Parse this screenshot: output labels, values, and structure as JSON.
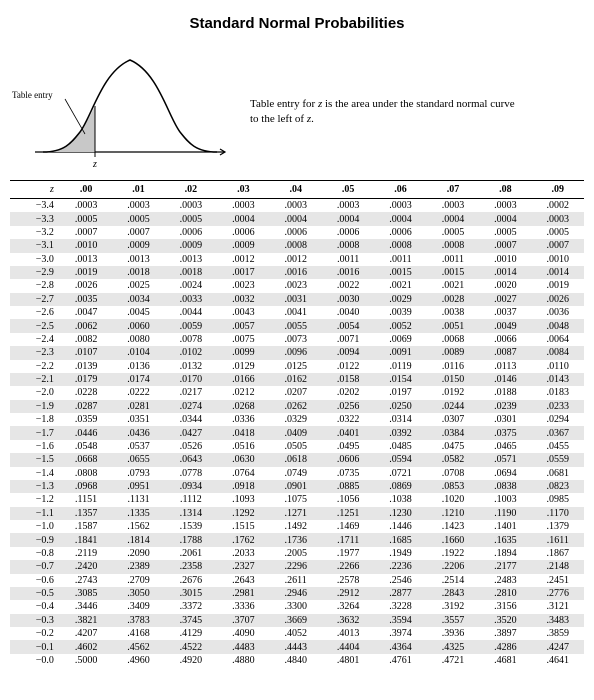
{
  "title": "Standard Normal Probabilities",
  "diagram": {
    "table_entry_label": "Table entry",
    "z_label": "z",
    "curve_stroke": "#000000",
    "fill_color": "#c8c8c8",
    "axis_color": "#000000"
  },
  "caption_line1": "Table entry for z is the area under the standard normal curve",
  "caption_line2": "to the left of z.",
  "columns": [
    "z",
    ".00",
    ".01",
    ".02",
    ".03",
    ".04",
    ".05",
    ".06",
    ".07",
    ".08",
    ".09"
  ],
  "rows": [
    {
      "z": "−3.4",
      "v": [
        ".0003",
        ".0003",
        ".0003",
        ".0003",
        ".0003",
        ".0003",
        ".0003",
        ".0003",
        ".0003",
        ".0002"
      ]
    },
    {
      "z": "−3.3",
      "v": [
        ".0005",
        ".0005",
        ".0005",
        ".0004",
        ".0004",
        ".0004",
        ".0004",
        ".0004",
        ".0004",
        ".0003"
      ]
    },
    {
      "z": "−3.2",
      "v": [
        ".0007",
        ".0007",
        ".0006",
        ".0006",
        ".0006",
        ".0006",
        ".0006",
        ".0005",
        ".0005",
        ".0005"
      ]
    },
    {
      "z": "−3.1",
      "v": [
        ".0010",
        ".0009",
        ".0009",
        ".0009",
        ".0008",
        ".0008",
        ".0008",
        ".0008",
        ".0007",
        ".0007"
      ]
    },
    {
      "z": "−3.0",
      "v": [
        ".0013",
        ".0013",
        ".0013",
        ".0012",
        ".0012",
        ".0011",
        ".0011",
        ".0011",
        ".0010",
        ".0010"
      ]
    },
    {
      "z": "−2.9",
      "v": [
        ".0019",
        ".0018",
        ".0018",
        ".0017",
        ".0016",
        ".0016",
        ".0015",
        ".0015",
        ".0014",
        ".0014"
      ]
    },
    {
      "z": "−2.8",
      "v": [
        ".0026",
        ".0025",
        ".0024",
        ".0023",
        ".0023",
        ".0022",
        ".0021",
        ".0021",
        ".0020",
        ".0019"
      ]
    },
    {
      "z": "−2.7",
      "v": [
        ".0035",
        ".0034",
        ".0033",
        ".0032",
        ".0031",
        ".0030",
        ".0029",
        ".0028",
        ".0027",
        ".0026"
      ]
    },
    {
      "z": "−2.6",
      "v": [
        ".0047",
        ".0045",
        ".0044",
        ".0043",
        ".0041",
        ".0040",
        ".0039",
        ".0038",
        ".0037",
        ".0036"
      ]
    },
    {
      "z": "−2.5",
      "v": [
        ".0062",
        ".0060",
        ".0059",
        ".0057",
        ".0055",
        ".0054",
        ".0052",
        ".0051",
        ".0049",
        ".0048"
      ]
    },
    {
      "z": "−2.4",
      "v": [
        ".0082",
        ".0080",
        ".0078",
        ".0075",
        ".0073",
        ".0071",
        ".0069",
        ".0068",
        ".0066",
        ".0064"
      ]
    },
    {
      "z": "−2.3",
      "v": [
        ".0107",
        ".0104",
        ".0102",
        ".0099",
        ".0096",
        ".0094",
        ".0091",
        ".0089",
        ".0087",
        ".0084"
      ]
    },
    {
      "z": "−2.2",
      "v": [
        ".0139",
        ".0136",
        ".0132",
        ".0129",
        ".0125",
        ".0122",
        ".0119",
        ".0116",
        ".0113",
        ".0110"
      ]
    },
    {
      "z": "−2.1",
      "v": [
        ".0179",
        ".0174",
        ".0170",
        ".0166",
        ".0162",
        ".0158",
        ".0154",
        ".0150",
        ".0146",
        ".0143"
      ]
    },
    {
      "z": "−2.0",
      "v": [
        ".0228",
        ".0222",
        ".0217",
        ".0212",
        ".0207",
        ".0202",
        ".0197",
        ".0192",
        ".0188",
        ".0183"
      ]
    },
    {
      "z": "−1.9",
      "v": [
        ".0287",
        ".0281",
        ".0274",
        ".0268",
        ".0262",
        ".0256",
        ".0250",
        ".0244",
        ".0239",
        ".0233"
      ]
    },
    {
      "z": "−1.8",
      "v": [
        ".0359",
        ".0351",
        ".0344",
        ".0336",
        ".0329",
        ".0322",
        ".0314",
        ".0307",
        ".0301",
        ".0294"
      ]
    },
    {
      "z": "−1.7",
      "v": [
        ".0446",
        ".0436",
        ".0427",
        ".0418",
        ".0409",
        ".0401",
        ".0392",
        ".0384",
        ".0375",
        ".0367"
      ]
    },
    {
      "z": "−1.6",
      "v": [
        ".0548",
        ".0537",
        ".0526",
        ".0516",
        ".0505",
        ".0495",
        ".0485",
        ".0475",
        ".0465",
        ".0455"
      ]
    },
    {
      "z": "−1.5",
      "v": [
        ".0668",
        ".0655",
        ".0643",
        ".0630",
        ".0618",
        ".0606",
        ".0594",
        ".0582",
        ".0571",
        ".0559"
      ]
    },
    {
      "z": "−1.4",
      "v": [
        ".0808",
        ".0793",
        ".0778",
        ".0764",
        ".0749",
        ".0735",
        ".0721",
        ".0708",
        ".0694",
        ".0681"
      ]
    },
    {
      "z": "−1.3",
      "v": [
        ".0968",
        ".0951",
        ".0934",
        ".0918",
        ".0901",
        ".0885",
        ".0869",
        ".0853",
        ".0838",
        ".0823"
      ]
    },
    {
      "z": "−1.2",
      "v": [
        ".1151",
        ".1131",
        ".1112",
        ".1093",
        ".1075",
        ".1056",
        ".1038",
        ".1020",
        ".1003",
        ".0985"
      ]
    },
    {
      "z": "−1.1",
      "v": [
        ".1357",
        ".1335",
        ".1314",
        ".1292",
        ".1271",
        ".1251",
        ".1230",
        ".1210",
        ".1190",
        ".1170"
      ]
    },
    {
      "z": "−1.0",
      "v": [
        ".1587",
        ".1562",
        ".1539",
        ".1515",
        ".1492",
        ".1469",
        ".1446",
        ".1423",
        ".1401",
        ".1379"
      ]
    },
    {
      "z": "−0.9",
      "v": [
        ".1841",
        ".1814",
        ".1788",
        ".1762",
        ".1736",
        ".1711",
        ".1685",
        ".1660",
        ".1635",
        ".1611"
      ]
    },
    {
      "z": "−0.8",
      "v": [
        ".2119",
        ".2090",
        ".2061",
        ".2033",
        ".2005",
        ".1977",
        ".1949",
        ".1922",
        ".1894",
        ".1867"
      ]
    },
    {
      "z": "−0.7",
      "v": [
        ".2420",
        ".2389",
        ".2358",
        ".2327",
        ".2296",
        ".2266",
        ".2236",
        ".2206",
        ".2177",
        ".2148"
      ]
    },
    {
      "z": "−0.6",
      "v": [
        ".2743",
        ".2709",
        ".2676",
        ".2643",
        ".2611",
        ".2578",
        ".2546",
        ".2514",
        ".2483",
        ".2451"
      ]
    },
    {
      "z": "−0.5",
      "v": [
        ".3085",
        ".3050",
        ".3015",
        ".2981",
        ".2946",
        ".2912",
        ".2877",
        ".2843",
        ".2810",
        ".2776"
      ]
    },
    {
      "z": "−0.4",
      "v": [
        ".3446",
        ".3409",
        ".3372",
        ".3336",
        ".3300",
        ".3264",
        ".3228",
        ".3192",
        ".3156",
        ".3121"
      ]
    },
    {
      "z": "−0.3",
      "v": [
        ".3821",
        ".3783",
        ".3745",
        ".3707",
        ".3669",
        ".3632",
        ".3594",
        ".3557",
        ".3520",
        ".3483"
      ]
    },
    {
      "z": "−0.2",
      "v": [
        ".4207",
        ".4168",
        ".4129",
        ".4090",
        ".4052",
        ".4013",
        ".3974",
        ".3936",
        ".3897",
        ".3859"
      ]
    },
    {
      "z": "−0.1",
      "v": [
        ".4602",
        ".4562",
        ".4522",
        ".4483",
        ".4443",
        ".4404",
        ".4364",
        ".4325",
        ".4286",
        ".4247"
      ]
    },
    {
      "z": "−0.0",
      "v": [
        ".5000",
        ".4960",
        ".4920",
        ".4880",
        ".4840",
        ".4801",
        ".4761",
        ".4721",
        ".4681",
        ".4641"
      ]
    }
  ]
}
